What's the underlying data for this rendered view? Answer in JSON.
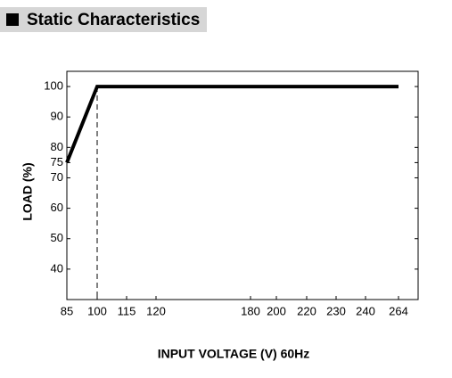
{
  "chart_data": {
    "type": "line",
    "title": "Static Characteristics",
    "x_label": "INPUT VOLTAGE (V) 60Hz",
    "y_label": "LOAD (%)",
    "x": [
      85,
      100,
      264
    ],
    "series": [
      {
        "color": "#000000",
        "values": [
          75,
          100,
          100
        ]
      }
    ],
    "reference_x": 100,
    "xlim": [
      85,
      264
    ],
    "xticks": [
      85,
      100,
      115,
      120,
      180,
      200,
      220,
      230,
      240,
      264
    ],
    "ylim": [
      30,
      105
    ],
    "yticks": [
      40,
      50,
      60,
      70,
      75,
      80,
      90,
      100
    ],
    "grid": false
  }
}
